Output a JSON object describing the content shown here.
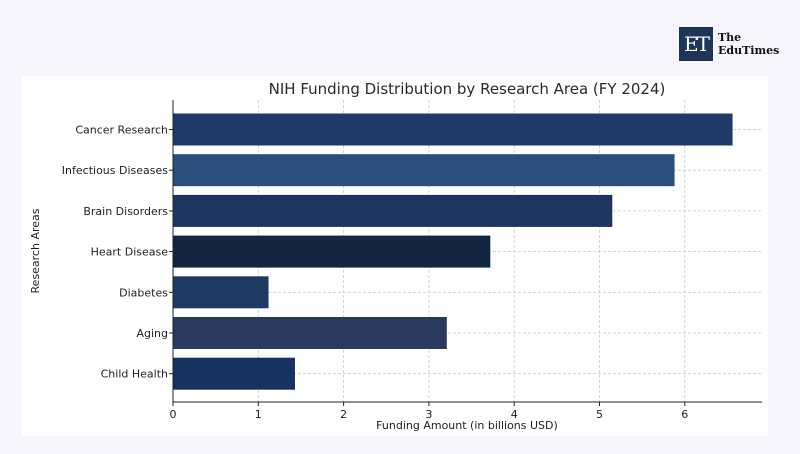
{
  "logo": {
    "mark": "ET",
    "text": "The\nEduTimes"
  },
  "chart_data": {
    "type": "bar",
    "orientation": "horizontal",
    "title": "NIH Funding Distribution by Research Area (FY 2024)",
    "xlabel": "Funding Amount (in billions USD)",
    "ylabel": "Research Areas",
    "categories": [
      "Cancer Research",
      "Infectious Diseases",
      "Brain Disorders",
      "Heart Disease",
      "Diabetes",
      "Aging",
      "Child Health"
    ],
    "values": [
      6.56,
      5.88,
      5.15,
      3.72,
      1.12,
      3.21,
      1.43
    ],
    "colors": [
      "#1f3a68",
      "#2a4f7d",
      "#1e3560",
      "#122640",
      "#1e3a63",
      "#283a5e",
      "#16325e"
    ],
    "xlim": [
      0,
      6.9
    ],
    "xticks": [
      0,
      1,
      2,
      3,
      4,
      5,
      6
    ],
    "grid": true
  }
}
